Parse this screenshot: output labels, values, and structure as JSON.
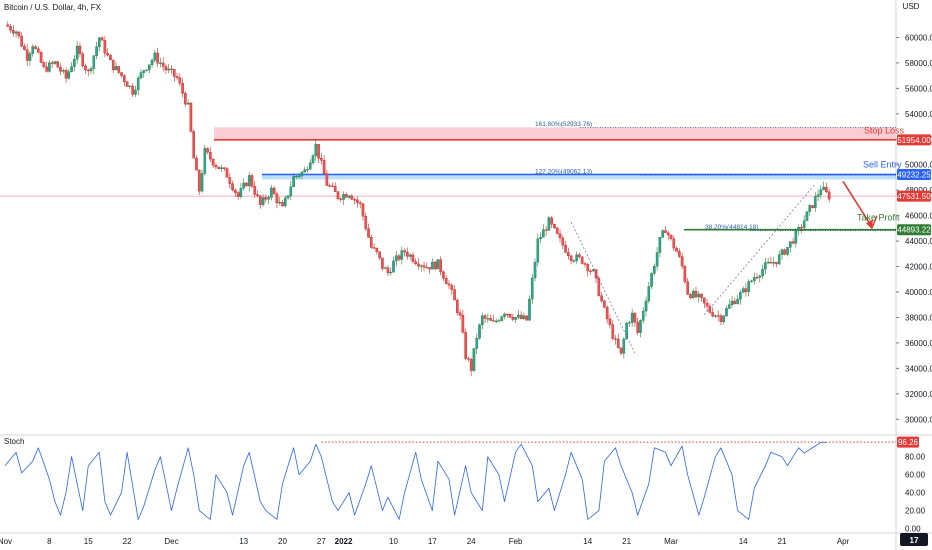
{
  "chart_data": {
    "type": "candlestick",
    "title": "Bitcoin / U.S. Dollar, 4h, FX",
    "currency": "USD",
    "ylim": [
      29000,
      62000
    ],
    "y_ticks": [
      30000,
      32000,
      34000,
      36000,
      38000,
      40000,
      42000,
      44000,
      46000,
      48000,
      50000,
      52000,
      54000,
      56000,
      58000,
      60000
    ],
    "y_tick_labels": [
      "30000.00",
      "32000.00",
      "34000.00",
      "36000.00",
      "38000.00",
      "40000.00",
      "42000.00",
      "44000.00",
      "46000.00",
      "48000.00",
      "50000.00",
      "52000.00",
      "54000.00",
      "56000.00",
      "58000.00",
      "60000.00"
    ],
    "x_ticks": [
      {
        "label": "Nov",
        "t": 0
      },
      {
        "label": "8",
        "t": 8
      },
      {
        "label": "15",
        "t": 15
      },
      {
        "label": "22",
        "t": 22
      },
      {
        "label": "Dec",
        "t": 30
      },
      {
        "label": "13",
        "t": 43
      },
      {
        "label": "20",
        "t": 50
      },
      {
        "label": "27",
        "t": 57
      },
      {
        "label": "2022",
        "t": 61
      },
      {
        "label": "10",
        "t": 70
      },
      {
        "label": "17",
        "t": 77
      },
      {
        "label": "24",
        "t": 84
      },
      {
        "label": "Feb",
        "t": 92
      },
      {
        "label": "14",
        "t": 105
      },
      {
        "label": "21",
        "t": 112
      },
      {
        "label": "Mar",
        "t": 120
      },
      {
        "label": "14",
        "t": 133
      },
      {
        "label": "21",
        "t": 140
      },
      {
        "label": "Apr",
        "t": 151
      }
    ],
    "price_path_days": [
      0,
      2,
      4,
      5,
      7,
      9,
      11,
      13,
      15,
      17,
      19,
      21,
      23,
      25,
      27,
      29,
      31,
      33,
      34,
      35,
      36,
      38,
      40,
      42,
      44,
      46,
      48,
      50,
      52,
      54,
      56,
      57,
      58,
      60,
      62,
      64,
      66,
      67,
      68,
      69,
      70,
      72,
      74,
      76,
      78,
      80,
      82,
      83,
      84,
      85,
      86,
      88,
      90,
      92,
      94,
      96,
      98,
      100,
      102,
      104,
      106,
      108,
      110,
      111,
      112,
      113,
      114,
      116,
      118,
      119,
      120,
      121,
      122,
      123,
      125,
      127,
      129,
      131,
      133,
      135,
      137,
      139,
      141,
      143,
      145,
      146,
      147,
      148,
      148.5
    ],
    "price_path": [
      61000,
      60500,
      58500,
      59500,
      57500,
      58000,
      56800,
      59000,
      57200,
      60000,
      58000,
      57000,
      55800,
      57500,
      58500,
      57500,
      56800,
      54500,
      50500,
      48000,
      51000,
      50000,
      49200,
      47500,
      49000,
      46800,
      48000,
      46500,
      49000,
      49500,
      51500,
      50000,
      48500,
      47500,
      47800,
      46800,
      43500,
      43000,
      42000,
      41500,
      42300,
      43200,
      42500,
      42000,
      42200,
      40500,
      38000,
      35000,
      34000,
      36500,
      38000,
      37500,
      38500,
      38000,
      37800,
      44000,
      45500,
      44000,
      42800,
      42500,
      41500,
      38500,
      36000,
      35000,
      37500,
      38200,
      36800,
      40500,
      44000,
      45000,
      44000,
      43200,
      42000,
      40000,
      39500,
      38500,
      38000,
      39200,
      40000,
      41200,
      42000,
      42500,
      43500,
      44800,
      46500,
      47300,
      48200,
      47700,
      47531.5
    ],
    "levels": [
      {
        "name": "Stop Loss",
        "value": 51954.0,
        "color": "#e53935",
        "label": "51954.00"
      },
      {
        "name": "Sell Entry",
        "value": 49232.25,
        "color": "#2962ff",
        "label": "49232.25"
      },
      {
        "name": "Take Profit",
        "value": 44893.22,
        "color": "#2e7d32",
        "label": "44893.22"
      }
    ],
    "current_price": {
      "value": 47531.5,
      "label": "47531.50",
      "color": "#e53935"
    },
    "fib_labels": [
      {
        "text": "161.80%(52933.76)",
        "value": 52933.76
      },
      {
        "text": "127.20%(49062.13)",
        "value": 49062.13
      },
      {
        "text": "38.20%(44814.18)",
        "value": 44814.18
      }
    ],
    "annotations": [
      "Stop Loss",
      "Sell Entry",
      "Take Profit"
    ]
  },
  "stoch": {
    "label": "Stoch",
    "ylim": [
      -5,
      102
    ],
    "y_ticks": [
      0,
      20,
      40,
      60,
      80
    ],
    "y_tick_labels": [
      "0.00",
      "20.00",
      "40.00",
      "60.00",
      "80.00"
    ],
    "current": {
      "value": 96.26,
      "label": "96.26"
    },
    "series_days": [
      0,
      2,
      3,
      5,
      6,
      8,
      9,
      10,
      11,
      12,
      14,
      15,
      17,
      18,
      19,
      21,
      22,
      24,
      25,
      27,
      28,
      30,
      31,
      33,
      34,
      35,
      37,
      38,
      40,
      41,
      43,
      44,
      46,
      47,
      49,
      50,
      52,
      53,
      55,
      56,
      57,
      59,
      60,
      62,
      63,
      65,
      66,
      68,
      69,
      71,
      72,
      74,
      75,
      77,
      78,
      80,
      81,
      83,
      84,
      86,
      87,
      89,
      90,
      92,
      93,
      95,
      96,
      98,
      99,
      101,
      102,
      104,
      105,
      107,
      108,
      110,
      111,
      113,
      114,
      116,
      117,
      119,
      120,
      122,
      123,
      125,
      126,
      128,
      129,
      131,
      132,
      134,
      135,
      137,
      138,
      140,
      141,
      143,
      144,
      146,
      147,
      148
    ],
    "series_values": [
      70,
      85,
      62,
      75,
      90,
      55,
      30,
      15,
      40,
      80,
      20,
      70,
      85,
      30,
      15,
      40,
      85,
      10,
      25,
      65,
      80,
      20,
      45,
      90,
      60,
      20,
      10,
      60,
      40,
      15,
      70,
      85,
      30,
      20,
      10,
      50,
      90,
      60,
      75,
      94,
      80,
      30,
      20,
      40,
      15,
      50,
      70,
      20,
      35,
      10,
      40,
      85,
      55,
      20,
      75,
      55,
      15,
      70,
      40,
      20,
      80,
      60,
      30,
      85,
      94,
      70,
      30,
      45,
      20,
      60,
      85,
      55,
      10,
      20,
      75,
      90,
      70,
      40,
      15,
      50,
      90,
      85,
      70,
      92,
      60,
      15,
      35,
      80,
      90,
      60,
      20,
      10,
      45,
      70,
      85,
      80,
      70,
      90,
      84,
      92,
      96,
      96
    ]
  },
  "branding": "TradingView"
}
